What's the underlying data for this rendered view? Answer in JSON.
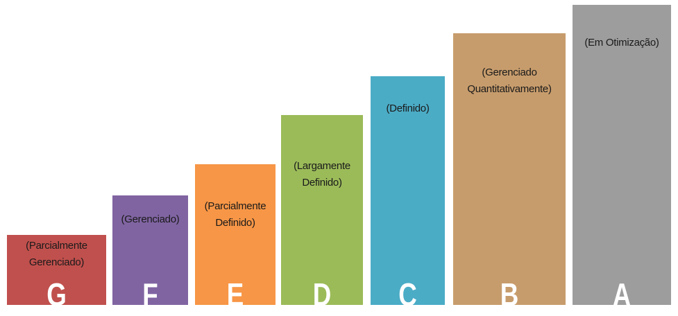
{
  "levels": [
    {
      "letter": "G",
      "description": [
        "(Parcialmente",
        "Gerenciado)"
      ]
    },
    {
      "letter": "F",
      "description": [
        "(Gerenciado)"
      ]
    },
    {
      "letter": "E",
      "description": [
        "(Parcialmente",
        "Definido)"
      ]
    },
    {
      "letter": "D",
      "description": [
        "(Largamente",
        "Definido)"
      ]
    },
    {
      "letter": "C",
      "description": [
        "(Definido)"
      ]
    },
    {
      "letter": "B",
      "description": [
        "(Gerenciado",
        "Quantitativamente)"
      ]
    },
    {
      "letter": "A",
      "description": [
        "(Em Otimização)"
      ]
    }
  ]
}
